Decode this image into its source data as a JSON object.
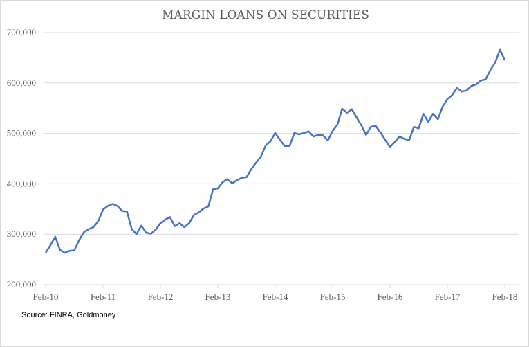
{
  "chart_data": {
    "type": "line",
    "title": "MARGIN LOANS ON SECURITIES",
    "source": "Source: FINRA, Goldmoney",
    "xlabel": "",
    "ylabel": "",
    "ylim": [
      200000,
      700000
    ],
    "yticks": [
      "200,000",
      "300,000",
      "400,000",
      "500,000",
      "600,000",
      "700,000"
    ],
    "ytick_values": [
      200000,
      300000,
      400000,
      500000,
      600000,
      700000
    ],
    "xticks": [
      "Feb-10",
      "Feb-11",
      "Feb-12",
      "Feb-13",
      "Feb-14",
      "Feb-15",
      "Feb-16",
      "Feb-17",
      "Feb-18"
    ],
    "grid": "horizontal",
    "legend": "none",
    "line_color": "#4472C4",
    "x": [
      "2010-02",
      "2010-03",
      "2010-04",
      "2010-05",
      "2010-06",
      "2010-07",
      "2010-08",
      "2010-09",
      "2010-10",
      "2010-11",
      "2010-12",
      "2011-01",
      "2011-02",
      "2011-03",
      "2011-04",
      "2011-05",
      "2011-06",
      "2011-07",
      "2011-08",
      "2011-09",
      "2011-10",
      "2011-11",
      "2011-12",
      "2012-01",
      "2012-02",
      "2012-03",
      "2012-04",
      "2012-05",
      "2012-06",
      "2012-07",
      "2012-08",
      "2012-09",
      "2012-10",
      "2012-11",
      "2012-12",
      "2013-01",
      "2013-02",
      "2013-03",
      "2013-04",
      "2013-05",
      "2013-06",
      "2013-07",
      "2013-08",
      "2013-09",
      "2013-10",
      "2013-11",
      "2013-12",
      "2014-01",
      "2014-02",
      "2014-03",
      "2014-04",
      "2014-05",
      "2014-06",
      "2014-07",
      "2014-08",
      "2014-09",
      "2014-10",
      "2014-11",
      "2014-12",
      "2015-01",
      "2015-02",
      "2015-03",
      "2015-04",
      "2015-05",
      "2015-06",
      "2015-07",
      "2015-08",
      "2015-09",
      "2015-10",
      "2015-11",
      "2015-12",
      "2016-01",
      "2016-02",
      "2016-03",
      "2016-04",
      "2016-05",
      "2016-06",
      "2016-07",
      "2016-08",
      "2016-09",
      "2016-10",
      "2016-11",
      "2016-12",
      "2017-01",
      "2017-02",
      "2017-03",
      "2017-04",
      "2017-05",
      "2017-06",
      "2017-07",
      "2017-08",
      "2017-09",
      "2017-10",
      "2017-11",
      "2017-12",
      "2018-01",
      "2018-02"
    ],
    "values": [
      263000,
      278000,
      295000,
      269000,
      263000,
      267000,
      268000,
      288000,
      304000,
      310000,
      314000,
      326000,
      349000,
      356000,
      360000,
      356000,
      346000,
      345000,
      310000,
      300000,
      317000,
      303000,
      301000,
      309000,
      322000,
      329000,
      334000,
      316000,
      322000,
      314000,
      322000,
      338000,
      343000,
      351000,
      355000,
      389000,
      391000,
      403000,
      409000,
      401000,
      407000,
      412000,
      413000,
      429000,
      442000,
      454000,
      476000,
      484000,
      501000,
      487000,
      475000,
      475000,
      501000,
      498000,
      501000,
      504000,
      494000,
      497000,
      496000,
      486000,
      505000,
      517000,
      549000,
      541000,
      548000,
      532000,
      516000,
      497000,
      513000,
      515000,
      502000,
      487000,
      473000,
      483000,
      494000,
      489000,
      487000,
      513000,
      510000,
      539000,
      523000,
      539000,
      528000,
      553000,
      568000,
      576000,
      590000,
      583000,
      585000,
      594000,
      597000,
      605000,
      607000,
      626000,
      641000,
      666000,
      645000
    ]
  }
}
